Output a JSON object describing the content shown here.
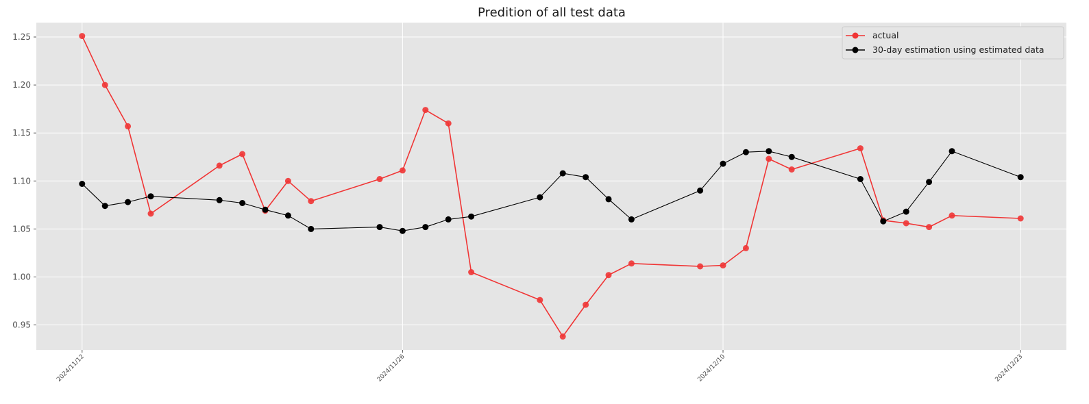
{
  "chart_data": {
    "type": "line",
    "title": "Predition of all test data",
    "xlabel": "",
    "ylabel": "",
    "grid": true,
    "legend_position": "top-right",
    "x_ticks": [
      "2024/11/12",
      "2024/11/26",
      "2024/12/10",
      "2024/12/23"
    ],
    "y_ticks": [
      "0.95",
      "1.00",
      "1.05",
      "1.10",
      "1.15",
      "1.20",
      "1.25"
    ],
    "ylim": [
      0.924,
      1.265
    ],
    "xlim": [
      "2024/11/10",
      "2024/12/25"
    ],
    "series": [
      {
        "name": "actual",
        "color": "#f03535",
        "points": [
          {
            "x": "2024/11/12",
            "y": 1.251
          },
          {
            "x": "2024/11/13",
            "y": 1.2
          },
          {
            "x": "2024/11/14",
            "y": 1.157
          },
          {
            "x": "2024/11/15",
            "y": 1.066
          },
          {
            "x": "2024/11/18",
            "y": 1.116
          },
          {
            "x": "2024/11/19",
            "y": 1.128
          },
          {
            "x": "2024/11/20",
            "y": 1.069
          },
          {
            "x": "2024/11/21",
            "y": 1.1
          },
          {
            "x": "2024/11/22",
            "y": 1.079
          },
          {
            "x": "2024/11/25",
            "y": 1.102
          },
          {
            "x": "2024/11/26",
            "y": 1.111
          },
          {
            "x": "2024/11/27",
            "y": 1.174
          },
          {
            "x": "2024/11/28",
            "y": 1.16
          },
          {
            "x": "2024/11/29",
            "y": 1.005
          },
          {
            "x": "2024/12/02",
            "y": 0.976
          },
          {
            "x": "2024/12/03",
            "y": 0.938
          },
          {
            "x": "2024/12/04",
            "y": 0.971
          },
          {
            "x": "2024/12/05",
            "y": 1.002
          },
          {
            "x": "2024/12/06",
            "y": 1.014
          },
          {
            "x": "2024/12/09",
            "y": 1.011
          },
          {
            "x": "2024/12/10",
            "y": 1.012
          },
          {
            "x": "2024/12/11",
            "y": 1.03
          },
          {
            "x": "2024/12/12",
            "y": 1.123
          },
          {
            "x": "2024/12/13",
            "y": 1.112
          },
          {
            "x": "2024/12/16",
            "y": 1.134
          },
          {
            "x": "2024/12/17",
            "y": 1.059
          },
          {
            "x": "2024/12/18",
            "y": 1.056
          },
          {
            "x": "2024/12/19",
            "y": 1.052
          },
          {
            "x": "2024/12/20",
            "y": 1.064
          },
          {
            "x": "2024/12/23",
            "y": 1.061
          }
        ]
      },
      {
        "name": "30-day estimation using estimated data",
        "color": "#000000",
        "points": [
          {
            "x": "2024/11/12",
            "y": 1.097
          },
          {
            "x": "2024/11/13",
            "y": 1.074
          },
          {
            "x": "2024/11/14",
            "y": 1.078
          },
          {
            "x": "2024/11/15",
            "y": 1.084
          },
          {
            "x": "2024/11/18",
            "y": 1.08
          },
          {
            "x": "2024/11/19",
            "y": 1.077
          },
          {
            "x": "2024/11/20",
            "y": 1.07
          },
          {
            "x": "2024/11/21",
            "y": 1.064
          },
          {
            "x": "2024/11/22",
            "y": 1.05
          },
          {
            "x": "2024/11/25",
            "y": 1.052
          },
          {
            "x": "2024/11/26",
            "y": 1.048
          },
          {
            "x": "2024/11/27",
            "y": 1.052
          },
          {
            "x": "2024/11/28",
            "y": 1.06
          },
          {
            "x": "2024/11/29",
            "y": 1.063
          },
          {
            "x": "2024/12/02",
            "y": 1.083
          },
          {
            "x": "2024/12/03",
            "y": 1.108
          },
          {
            "x": "2024/12/04",
            "y": 1.104
          },
          {
            "x": "2024/12/05",
            "y": 1.081
          },
          {
            "x": "2024/12/06",
            "y": 1.06
          },
          {
            "x": "2024/12/09",
            "y": 1.09
          },
          {
            "x": "2024/12/10",
            "y": 1.118
          },
          {
            "x": "2024/12/11",
            "y": 1.13
          },
          {
            "x": "2024/12/12",
            "y": 1.131
          },
          {
            "x": "2024/12/13",
            "y": 1.125
          },
          {
            "x": "2024/12/16",
            "y": 1.102
          },
          {
            "x": "2024/12/17",
            "y": 1.058
          },
          {
            "x": "2024/12/18",
            "y": 1.068
          },
          {
            "x": "2024/12/19",
            "y": 1.099
          },
          {
            "x": "2024/12/20",
            "y": 1.131
          },
          {
            "x": "2024/12/23",
            "y": 1.104
          }
        ]
      }
    ]
  },
  "colors": {
    "plot_background": "#e5e5e5",
    "grid": "#ffffff"
  }
}
